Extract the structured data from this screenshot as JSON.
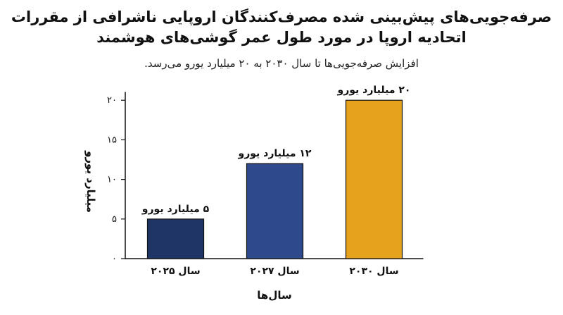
{
  "chart_data": {
    "type": "bar",
    "title_lines": [
      "صرفه‌جویی‌های پیش‌بینی شده مصرف‌کنندگان اروپایی ناشرافی از مقررات",
      "اتحادیه اروپا در مورد طول عمر گوشی‌های هوشمند"
    ],
    "subtitle": "افزایش صرفه‌جویی‌ها تا سال ۲۰۳۰ به ۲۰ میلیارد یورو می‌رسد.",
    "categories": [
      "سال ۲۰۲۵",
      "سال ۲۰۲۷",
      "سال ۲۰۳۰"
    ],
    "values": [
      5,
      12,
      20
    ],
    "data_labels": [
      "۵ میلیارد یورو",
      "۱۲ میلیارد یورو",
      "۲۰ میلیارد یورو"
    ],
    "colors": [
      "#1f3566",
      "#2e4a8c",
      "#e6a21c"
    ],
    "xlabel": "سال‌ها",
    "ylabel": "میلیارد یورو",
    "ylim": [
      0,
      21
    ],
    "yticks": [
      0,
      5,
      10,
      15,
      20
    ],
    "ytick_labels": [
      "۰",
      "۵",
      "۱۰",
      "۱۵",
      "۲۰"
    ],
    "grid": false
  }
}
